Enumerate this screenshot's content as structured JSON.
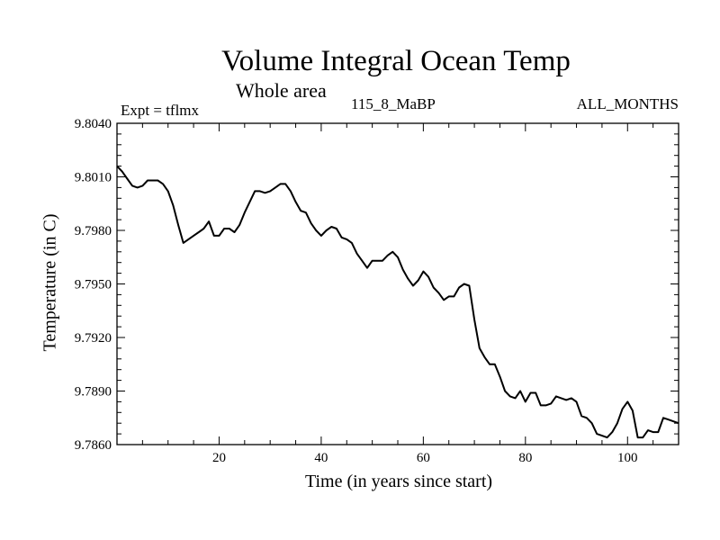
{
  "chart_data": {
    "type": "line",
    "title": "Volume Integral Ocean Temp",
    "subtitle": "Whole area",
    "left_label": "Expt = tflmx",
    "center_label": "115_8_MaBP",
    "right_label": "ALL_MONTHS",
    "xlabel": "Time (in years since start)",
    "ylabel": "Temperature (in C)",
    "xlim": [
      0,
      110
    ],
    "ylim": [
      9.786,
      9.804
    ],
    "xticks": [
      20,
      40,
      60,
      80,
      100
    ],
    "xtick_labels": [
      "20",
      "40",
      "60",
      "80",
      "100"
    ],
    "yticks": [
      9.786,
      9.789,
      9.792,
      9.795,
      9.798,
      9.801,
      9.804
    ],
    "ytick_labels": [
      "9.7860",
      "9.7890",
      "9.7920",
      "9.7950",
      "9.7980",
      "9.8010",
      "9.8040"
    ],
    "series": [
      {
        "name": "tflmx",
        "x": [
          0,
          1,
          2,
          3,
          4,
          5,
          6,
          7,
          8,
          9,
          10,
          11,
          12,
          13,
          14,
          15,
          16,
          17,
          18,
          19,
          20,
          21,
          22,
          23,
          24,
          25,
          26,
          27,
          28,
          29,
          30,
          31,
          32,
          33,
          34,
          35,
          36,
          37,
          38,
          39,
          40,
          41,
          42,
          43,
          44,
          45,
          46,
          47,
          48,
          49,
          50,
          51,
          52,
          53,
          54,
          55,
          56,
          57,
          58,
          59,
          60,
          61,
          62,
          63,
          64,
          65,
          66,
          67,
          68,
          69,
          70,
          71,
          72,
          73,
          74,
          75,
          76,
          77,
          78,
          79,
          80,
          81,
          82,
          83,
          84,
          85,
          86,
          87,
          88,
          89,
          90,
          91,
          92,
          93,
          94,
          95,
          96,
          97,
          98,
          99,
          100,
          101,
          102,
          103,
          104,
          105,
          106,
          107,
          108,
          109,
          110
        ],
        "values": [
          9.8016,
          9.8013,
          9.8009,
          9.8005,
          9.8004,
          9.8005,
          9.8008,
          9.8008,
          9.8008,
          9.8006,
          9.8002,
          9.7994,
          9.7983,
          9.7973,
          9.7975,
          9.7977,
          9.7979,
          9.7981,
          9.7985,
          9.7977,
          9.7977,
          9.7981,
          9.7981,
          9.7979,
          9.7983,
          9.799,
          9.7996,
          9.8002,
          9.8002,
          9.8001,
          9.8002,
          9.8004,
          9.8006,
          9.8006,
          9.8002,
          9.7996,
          9.7991,
          9.799,
          9.7984,
          9.798,
          9.7977,
          9.798,
          9.7982,
          9.7981,
          9.7976,
          9.7975,
          9.7973,
          9.7967,
          9.7963,
          9.7959,
          9.7963,
          9.7963,
          9.7963,
          9.7966,
          9.7968,
          9.7965,
          9.7958,
          9.7953,
          9.7949,
          9.7952,
          9.7957,
          9.7954,
          9.7948,
          9.7945,
          9.7941,
          9.7943,
          9.7943,
          9.7948,
          9.795,
          9.7949,
          9.793,
          9.7914,
          9.7909,
          9.7905,
          9.7905,
          9.7898,
          9.789,
          9.7887,
          9.7886,
          9.789,
          9.7884,
          9.7889,
          9.7889,
          9.7882,
          9.7882,
          9.7883,
          9.7887,
          9.7886,
          9.7885,
          9.7886,
          9.7884,
          9.7876,
          9.7875,
          9.7872,
          9.7866,
          9.7865,
          9.7864,
          9.7867,
          9.7872,
          9.788,
          9.7884,
          9.7879,
          9.7864,
          9.7864,
          9.7868,
          9.7867,
          9.7867,
          9.7875,
          9.7874,
          9.7873,
          9.7872
        ]
      }
    ]
  }
}
